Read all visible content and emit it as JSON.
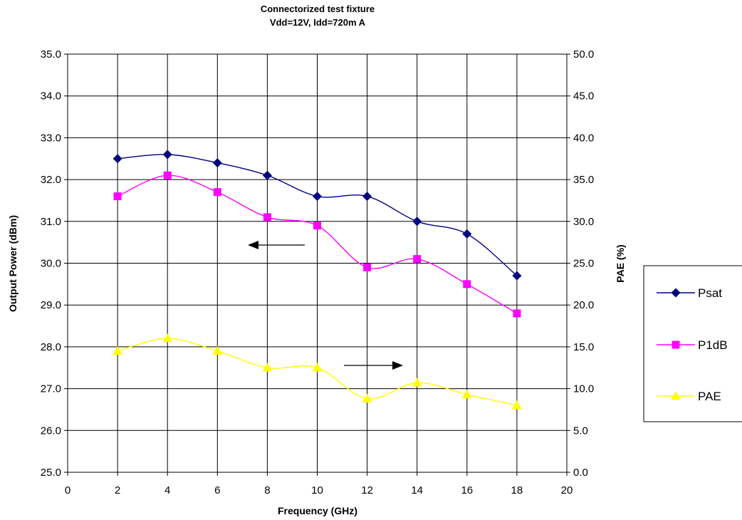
{
  "chart_data": {
    "type": "line",
    "title": "Connectorized test fixture",
    "subtitle": "Vdd=12V, Idd=720m A",
    "xlabel": "Frequency (GHz)",
    "ylabel_left": "Output Power (dBm)",
    "ylabel_right": "PAE (%)",
    "xlim": [
      0,
      20
    ],
    "ylim_left": [
      25.0,
      35.0
    ],
    "ylim_right": [
      0.0,
      50.0
    ],
    "x_ticks": [
      "0",
      "2",
      "4",
      "6",
      "8",
      "10",
      "12",
      "14",
      "16",
      "18",
      "20"
    ],
    "y_left_ticks": [
      "25.0",
      "26.0",
      "27.0",
      "28.0",
      "29.0",
      "30.0",
      "31.0",
      "32.0",
      "33.0",
      "34.0",
      "35.0"
    ],
    "y_right_ticks": [
      "0.0",
      "5.0",
      "10.0",
      "15.0",
      "20.0",
      "25.0",
      "30.0",
      "35.0",
      "40.0",
      "45.0",
      "50.0"
    ],
    "grid": true,
    "legend_position": "right",
    "x": [
      2,
      4,
      6,
      8,
      10,
      12,
      14,
      16,
      18
    ],
    "series": [
      {
        "name": "Psat",
        "axis": "left",
        "marker": "diamond",
        "color": "#000080",
        "values": [
          32.5,
          32.6,
          32.4,
          32.1,
          31.6,
          31.6,
          31.0,
          30.7,
          29.7
        ]
      },
      {
        "name": "P1dB",
        "axis": "left",
        "marker": "square",
        "color": "#ff00ff",
        "values": [
          31.6,
          32.1,
          31.7,
          31.1,
          30.9,
          29.9,
          30.1,
          29.5,
          28.8
        ]
      },
      {
        "name": "PAE",
        "axis": "right",
        "marker": "triangle",
        "color": "#ffff00",
        "values": [
          14.5,
          16.0,
          14.5,
          12.5,
          12.5,
          8.8,
          10.7,
          9.3,
          8.0
        ]
      }
    ],
    "annotations": [
      {
        "type": "arrow",
        "direction": "left",
        "refers_to": "left-axis"
      },
      {
        "type": "arrow",
        "direction": "right",
        "refers_to": "right-axis"
      }
    ]
  }
}
